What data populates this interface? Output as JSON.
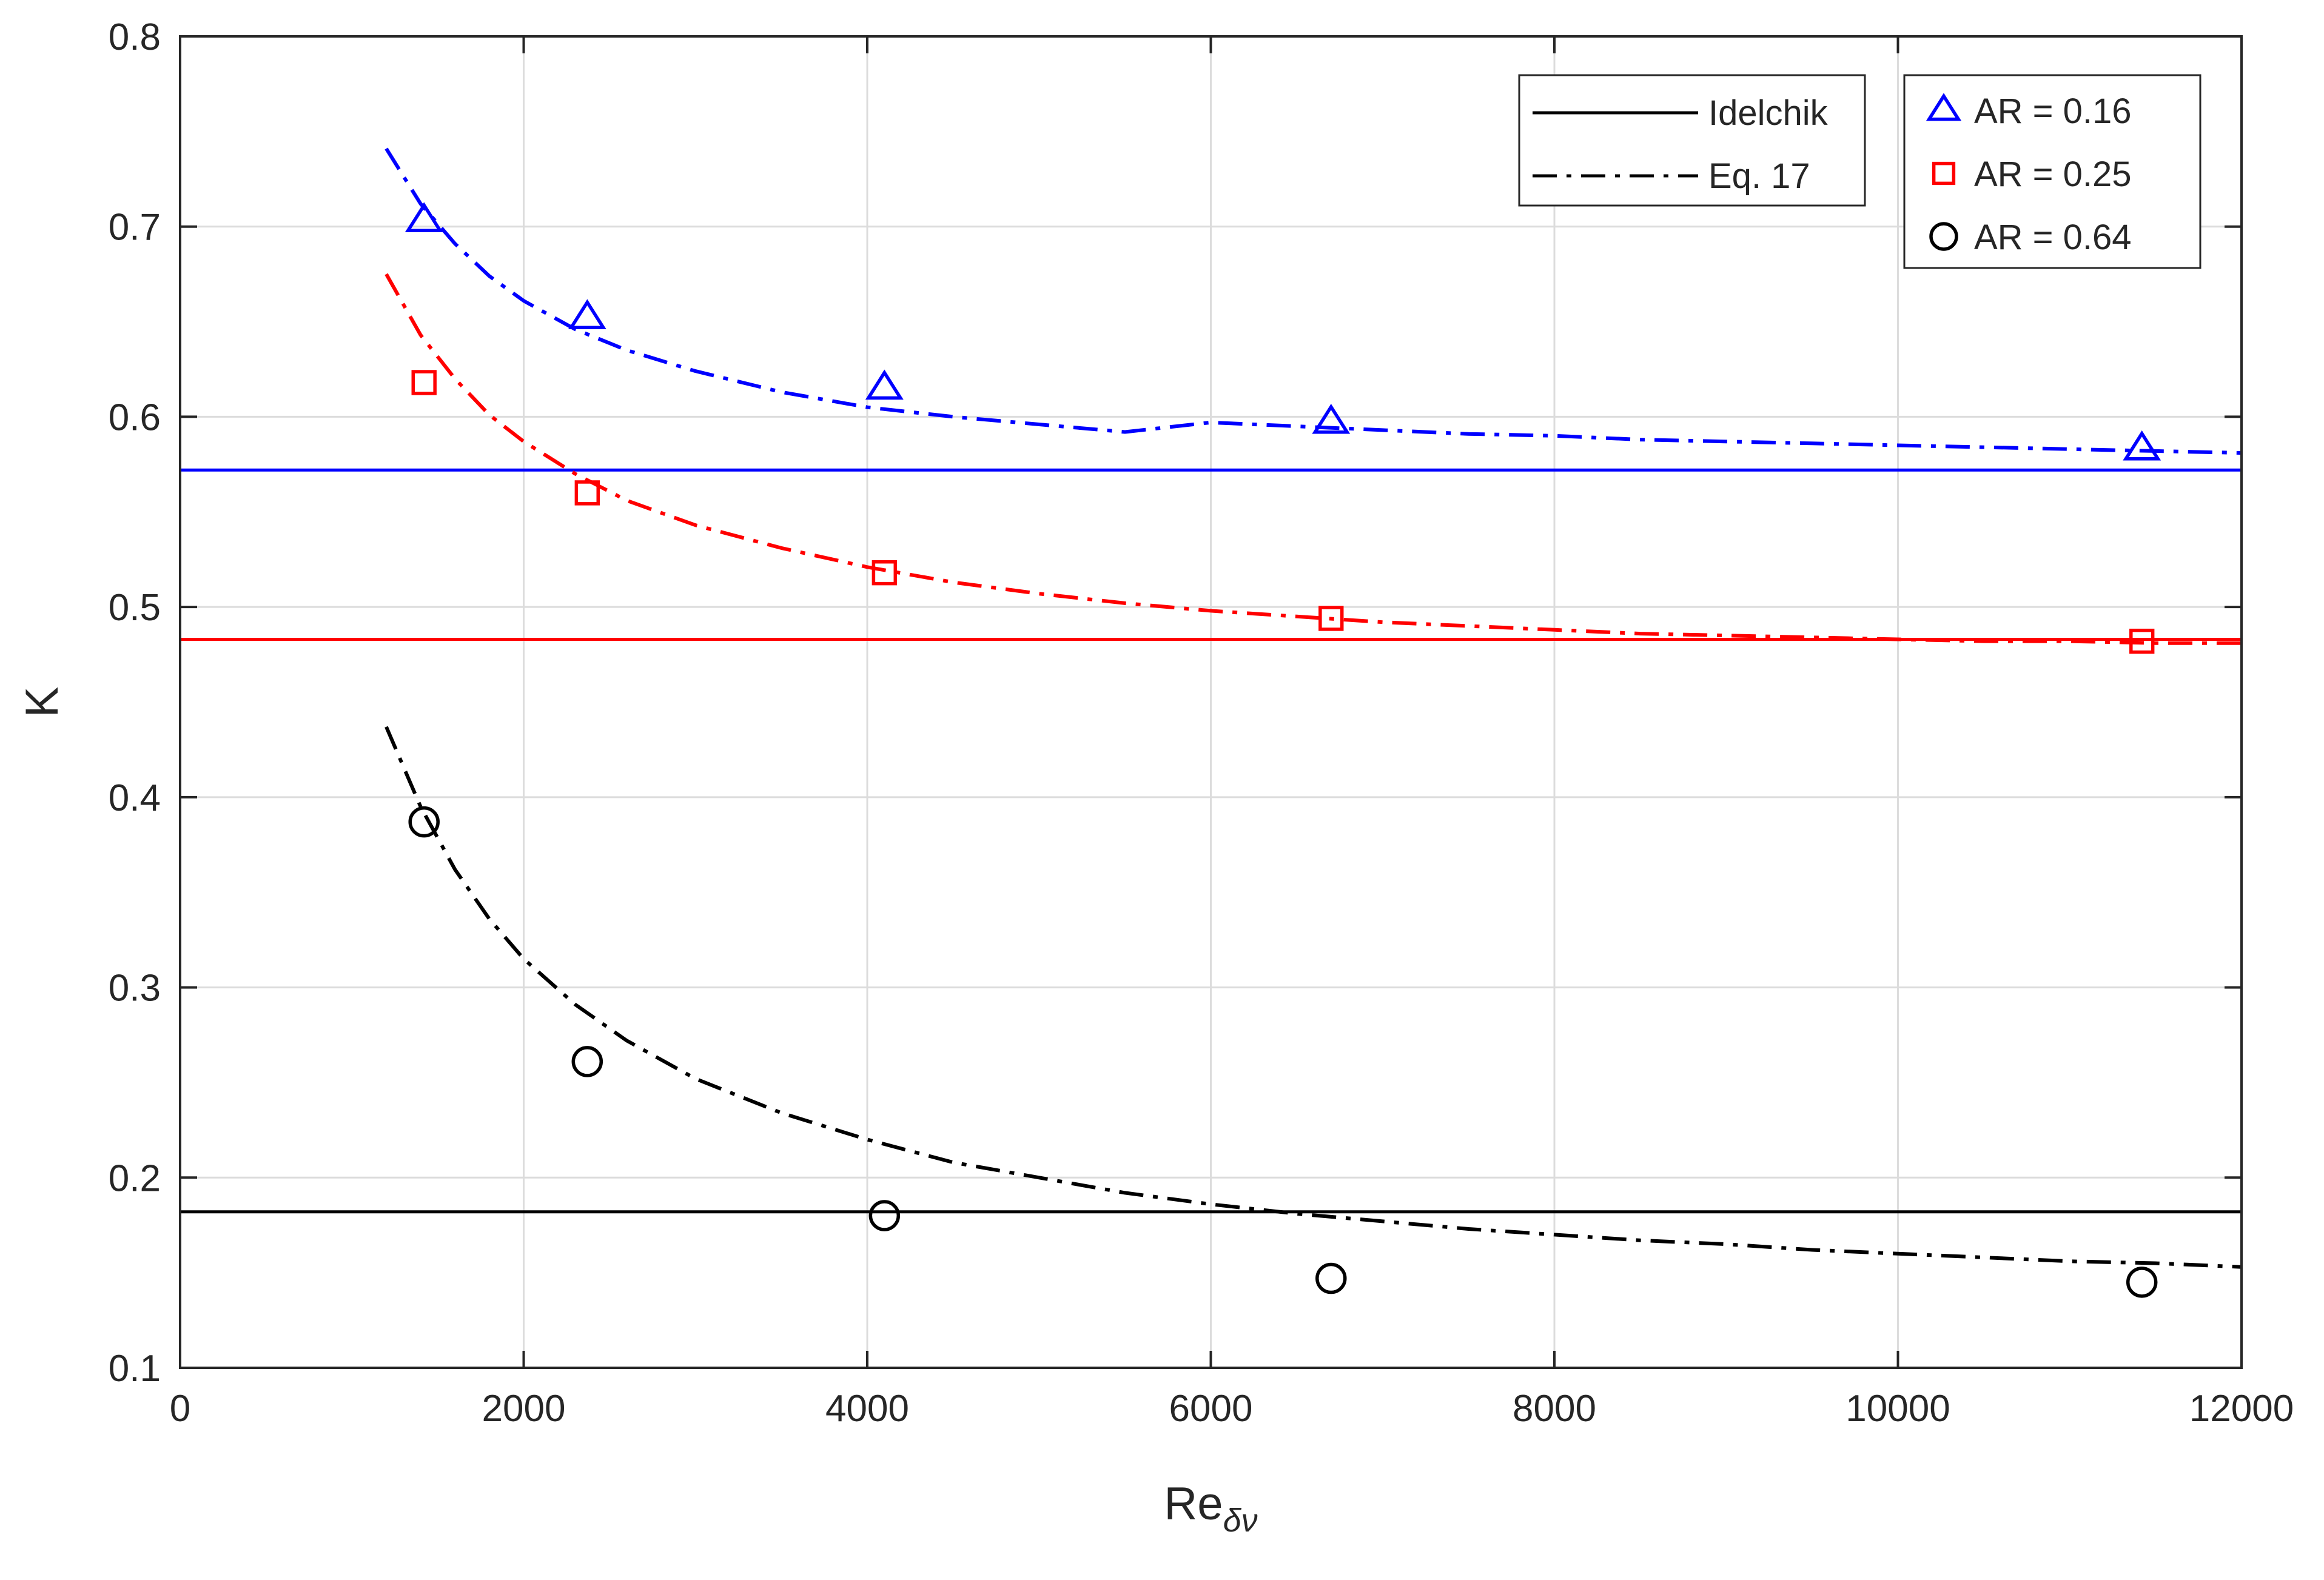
{
  "chart_data": {
    "type": "scatter",
    "title": "",
    "xlabel": "Re",
    "xlabel_subscript": "δν",
    "ylabel": "K",
    "xlim": [
      0,
      12000
    ],
    "ylim": [
      0.1,
      0.8
    ],
    "grid": true,
    "xticks": [
      0,
      2000,
      4000,
      6000,
      8000,
      10000,
      12000
    ],
    "xtick_labels": [
      "0",
      "2000",
      "4000",
      "6000",
      "8000",
      "10000",
      "12000"
    ],
    "yticks": [
      0.1,
      0.2,
      0.3,
      0.4,
      0.5,
      0.6,
      0.7,
      0.8
    ],
    "ytick_labels": [
      "0.1",
      "0.2",
      "0.3",
      "0.4",
      "0.5",
      "0.6",
      "0.7",
      "0.8"
    ],
    "series": [
      {
        "name": "AR = 0.16",
        "color": "#0000ff",
        "marker": "triangle",
        "x": [
          1420,
          2370,
          4100,
          6700,
          11420
        ],
        "y": [
          0.703,
          0.652,
          0.615,
          0.597,
          0.583
        ],
        "idelchik": 0.572,
        "eq17": {
          "x": [
            1200,
            1400,
            1600,
            1800,
            2000,
            2300,
            2600,
            3000,
            3500,
            4000,
            4500,
            5000,
            5500,
            6000,
            6500,
            7000,
            7500,
            8000,
            8500,
            9000,
            9500,
            10000,
            10500,
            11000,
            11500,
            12000
          ],
          "y": [
            0.741,
            0.712,
            0.691,
            0.674,
            0.661,
            0.646,
            0.635,
            0.624,
            0.613,
            0.605,
            0.6,
            0.596,
            0.592,
            0.597,
            0.595,
            0.593,
            0.591,
            0.59,
            0.588,
            0.587,
            0.586,
            0.585,
            0.584,
            0.583,
            0.582,
            0.581
          ]
        }
      },
      {
        "name": "AR = 0.25",
        "color": "#ff0000",
        "marker": "square",
        "x": [
          1420,
          2370,
          4100,
          6700,
          11420
        ],
        "y": [
          0.618,
          0.56,
          0.518,
          0.494,
          0.482
        ],
        "idelchik": 0.483,
        "eq17": {
          "x": [
            1200,
            1400,
            1600,
            1800,
            2000,
            2300,
            2600,
            3000,
            3500,
            4000,
            4500,
            5000,
            5500,
            6000,
            6500,
            7000,
            7500,
            8000,
            8500,
            9000,
            9500,
            10000,
            10500,
            11000,
            11500,
            12000
          ],
          "y": [
            0.675,
            0.643,
            0.62,
            0.601,
            0.587,
            0.57,
            0.556,
            0.543,
            0.531,
            0.521,
            0.513,
            0.507,
            0.502,
            0.498,
            0.495,
            0.492,
            0.49,
            0.488,
            0.486,
            0.485,
            0.484,
            0.483,
            0.482,
            0.482,
            0.481,
            0.481
          ]
        }
      },
      {
        "name": "AR = 0.64",
        "color": "#000000",
        "marker": "circle",
        "x": [
          1420,
          2370,
          4100,
          6700,
          11420
        ],
        "y": [
          0.387,
          0.261,
          0.18,
          0.147,
          0.145
        ],
        "idelchik": 0.182,
        "eq17": {
          "x": [
            1200,
            1400,
            1600,
            1800,
            2000,
            2300,
            2600,
            3000,
            3500,
            4000,
            4500,
            5000,
            5500,
            6000,
            6500,
            7000,
            7500,
            8000,
            8500,
            9000,
            9500,
            10000,
            10500,
            11000,
            11500,
            12000
          ],
          "y": [
            0.437,
            0.395,
            0.362,
            0.336,
            0.315,
            0.291,
            0.272,
            0.252,
            0.234,
            0.22,
            0.208,
            0.2,
            0.192,
            0.186,
            0.181,
            0.177,
            0.173,
            0.17,
            0.167,
            0.165,
            0.162,
            0.16,
            0.158,
            0.156,
            0.155,
            0.153
          ]
        }
      }
    ],
    "legend_left": {
      "placement": "top-right",
      "entries": [
        {
          "label": "Idelchik",
          "style": "solid"
        },
        {
          "label": "Eq. 17",
          "style": "dash-dot"
        }
      ]
    },
    "legend_right": {
      "placement": "top-right",
      "entries": [
        "AR = 0.16",
        "AR = 0.25",
        "AR = 0.64"
      ]
    }
  }
}
